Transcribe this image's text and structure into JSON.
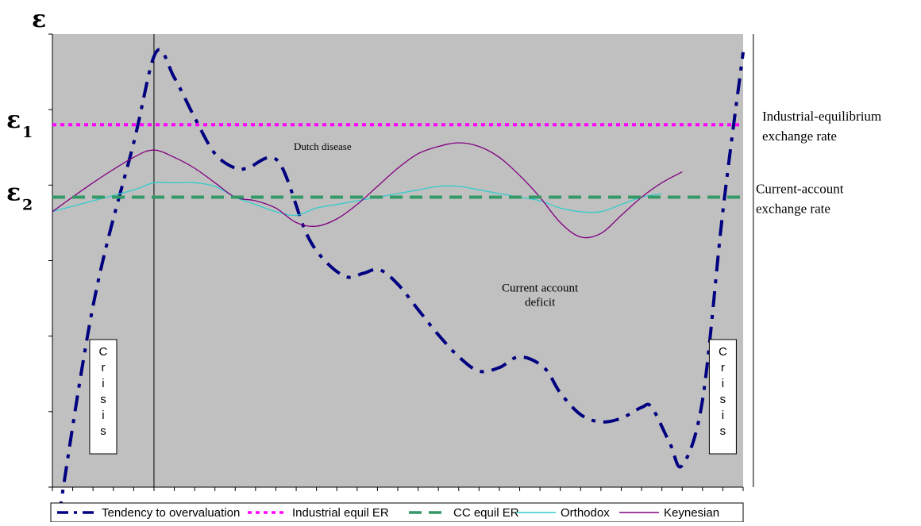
{
  "chart_data": {
    "type": "line",
    "title": "",
    "y_axis_label": "ε",
    "y_markers": [
      {
        "main": "ε",
        "sub": "1",
        "value": 100
      },
      {
        "main": "ε",
        "sub": "2",
        "value": 80
      }
    ],
    "reference_lines": [
      {
        "name": "Industrial equil ER",
        "value": 100,
        "color": "#ff00ff",
        "style": "dotted",
        "label_lines": [
          "Industrial-equilibrium",
          "exchange rate"
        ]
      },
      {
        "name": "CC equil ER",
        "value": 80,
        "color": "#339966",
        "style": "dashed",
        "label_lines": [
          "Current-account",
          "exchange rate"
        ]
      }
    ],
    "series": [
      {
        "name": "Tendency to overvaluation",
        "color": "#000080",
        "style": "dashdot",
        "points": [
          [
            0.05,
            -18
          ],
          [
            2,
            50
          ],
          [
            4,
            95
          ],
          [
            5.1,
            120
          ],
          [
            6,
            113
          ],
          [
            7,
            102
          ],
          [
            8,
            92
          ],
          [
            9,
            88
          ],
          [
            9.6,
            88
          ],
          [
            11.1,
            90
          ],
          [
            12.5,
            70
          ],
          [
            13.5,
            62
          ],
          [
            14.5,
            58
          ],
          [
            15.3,
            59
          ],
          [
            16.1,
            60
          ],
          [
            17,
            56
          ],
          [
            18,
            49
          ],
          [
            19,
            42
          ],
          [
            20,
            36
          ],
          [
            21,
            32
          ],
          [
            22,
            33
          ],
          [
            23,
            36
          ],
          [
            24.2,
            33
          ],
          [
            25,
            26
          ],
          [
            26,
            20
          ],
          [
            27,
            18
          ],
          [
            28,
            19
          ],
          [
            29,
            22
          ],
          [
            29.5,
            22
          ],
          [
            30.4,
            12
          ],
          [
            31,
            6
          ],
          [
            32,
            24
          ],
          [
            33,
            76
          ],
          [
            34,
            120
          ]
        ]
      },
      {
        "name": "Orthodox",
        "color": "#33cccc",
        "style": "solid",
        "points": [
          [
            0,
            76
          ],
          [
            2,
            79
          ],
          [
            4,
            82
          ],
          [
            5,
            84
          ],
          [
            6,
            84
          ],
          [
            7,
            84
          ],
          [
            8,
            83
          ],
          [
            9,
            80
          ],
          [
            10,
            78
          ],
          [
            11,
            76
          ],
          [
            12,
            75
          ],
          [
            13,
            77
          ],
          [
            14,
            78
          ],
          [
            15,
            79
          ],
          [
            16,
            80
          ],
          [
            17,
            81
          ],
          [
            18,
            82
          ],
          [
            19,
            83
          ],
          [
            20,
            83
          ],
          [
            21,
            82
          ],
          [
            22,
            81
          ],
          [
            23,
            80
          ],
          [
            24,
            79
          ],
          [
            25,
            77
          ],
          [
            26,
            76
          ],
          [
            27,
            76
          ],
          [
            28,
            78
          ],
          [
            29,
            80
          ],
          [
            30,
            81
          ]
        ]
      },
      {
        "name": "Keynesian",
        "color": "#800080",
        "style": "solid",
        "points": [
          [
            0,
            76
          ],
          [
            2,
            84
          ],
          [
            4,
            91
          ],
          [
            5,
            93
          ],
          [
            6,
            91
          ],
          [
            7,
            88
          ],
          [
            8,
            84
          ],
          [
            9,
            80
          ],
          [
            10,
            79
          ],
          [
            11,
            77
          ],
          [
            12,
            73
          ],
          [
            13,
            72
          ],
          [
            14,
            74
          ],
          [
            15,
            78
          ],
          [
            16,
            83
          ],
          [
            17,
            88
          ],
          [
            18,
            92
          ],
          [
            19,
            94
          ],
          [
            20,
            95
          ],
          [
            21,
            94
          ],
          [
            22,
            91
          ],
          [
            23,
            86
          ],
          [
            24,
            80
          ],
          [
            25,
            73
          ],
          [
            26,
            69
          ],
          [
            27,
            70
          ],
          [
            28,
            75
          ],
          [
            29,
            80
          ],
          [
            30,
            84
          ],
          [
            31,
            87
          ]
        ]
      }
    ],
    "x_ticks": 34,
    "ylim": [
      0,
      125
    ],
    "annotations": [
      {
        "text": "Dutch disease",
        "x": 13.3,
        "y": 93
      },
      {
        "text": "Current account",
        "x": 24,
        "y": 54
      },
      {
        "text": "deficit",
        "x": 24,
        "y": 50
      }
    ],
    "crisis_lines_x": [
      5,
      34.5
    ],
    "crisis_boxes": [
      {
        "label": "Crisis",
        "x": 2.5
      },
      {
        "label": "Crisis",
        "x": 33
      }
    ],
    "legend": {
      "position": "bottom",
      "entries": [
        "Tendency to overvaluation",
        "Industrial equil ER",
        "CC equil ER",
        "Orthodox",
        "Keynesian"
      ]
    },
    "grid": false,
    "background": "#c0c0c0"
  }
}
